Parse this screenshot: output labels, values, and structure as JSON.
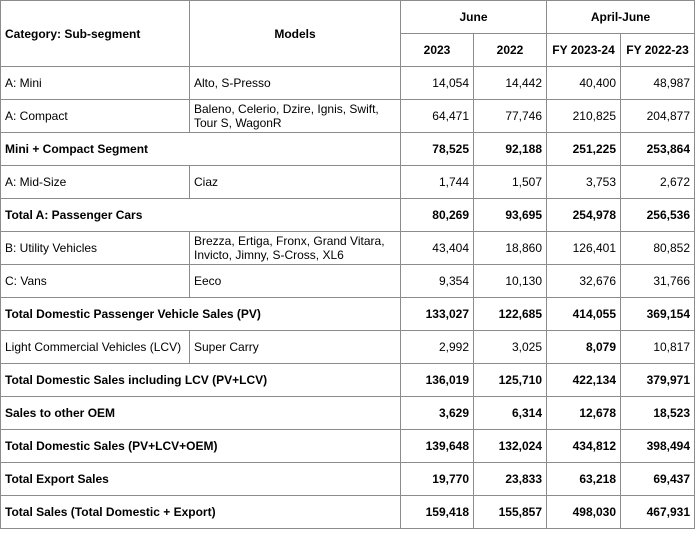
{
  "header": {
    "category": "Category: Sub-segment",
    "models": "Models",
    "june": "June",
    "april_june": "April-June",
    "col_2023": "2023",
    "col_2022": "2022",
    "col_fy2324": "FY 2023-24",
    "col_fy2223": "FY 2022-23"
  },
  "rows": [
    {
      "category": "A: Mini",
      "models": "Alto, S-Presso",
      "june_2023": "14,054",
      "june_2022": "14,442",
      "fy_2023_24": "40,400",
      "fy_2022_23": "48,987"
    },
    {
      "category": "A: Compact",
      "models": "Baleno, Celerio, Dzire, Ignis, Swift, Tour S, WagonR",
      "june_2023": "64,471",
      "june_2022": "77,746",
      "fy_2023_24": "210,825",
      "fy_2022_23": "204,877"
    },
    {
      "category": "Mini + Compact Segment",
      "june_2023": "78,525",
      "june_2022": "92,188",
      "fy_2023_24": "251,225",
      "fy_2022_23": "253,864"
    },
    {
      "category": "A: Mid-Size",
      "models": "Ciaz",
      "june_2023": "1,744",
      "june_2022": "1,507",
      "fy_2023_24": "3,753",
      "fy_2022_23": "2,672"
    },
    {
      "category": "Total A: Passenger Cars",
      "june_2023": "80,269",
      "june_2022": "93,695",
      "fy_2023_24": "254,978",
      "fy_2022_23": "256,536"
    },
    {
      "category": "B: Utility Vehicles",
      "models": "Brezza, Ertiga, Fronx, Grand Vitara, Invicto, Jimny, S-Cross, XL6",
      "june_2023": "43,404",
      "june_2022": "18,860",
      "fy_2023_24": "126,401",
      "fy_2022_23": "80,852"
    },
    {
      "category": "C: Vans",
      "models": "Eeco",
      "june_2023": "9,354",
      "june_2022": "10,130",
      "fy_2023_24": "32,676",
      "fy_2022_23": "31,766"
    },
    {
      "category": "Total Domestic Passenger Vehicle Sales (PV)",
      "june_2023": "133,027",
      "june_2022": "122,685",
      "fy_2023_24": "414,055",
      "fy_2022_23": "369,154"
    },
    {
      "category": "Light Commercial Vehicles (LCV)",
      "models": "Super Carry",
      "june_2023": "2,992",
      "june_2022": "3,025",
      "fy_2023_24": "8,079",
      "fy_2022_23": "10,817"
    },
    {
      "category": "Total Domestic Sales including LCV (PV+LCV)",
      "june_2023": "136,019",
      "june_2022": "125,710",
      "fy_2023_24": "422,134",
      "fy_2022_23": "379,971"
    },
    {
      "category": "Sales to other OEM",
      "june_2023": "3,629",
      "june_2022": "6,314",
      "fy_2023_24": "12,678",
      "fy_2022_23": "18,523"
    },
    {
      "category": "Total Domestic Sales (PV+LCV+OEM)",
      "june_2023": "139,648",
      "june_2022": "132,024",
      "fy_2023_24": "434,812",
      "fy_2022_23": "398,494"
    },
    {
      "category": "Total Export Sales",
      "june_2023": "19,770",
      "june_2022": "23,833",
      "fy_2023_24": "63,218",
      "fy_2022_23": "69,437"
    },
    {
      "category": "Total Sales (Total Domestic + Export)",
      "june_2023": "159,418",
      "june_2022": "155,857",
      "fy_2023_24": "498,030",
      "fy_2022_23": "467,931"
    }
  ]
}
